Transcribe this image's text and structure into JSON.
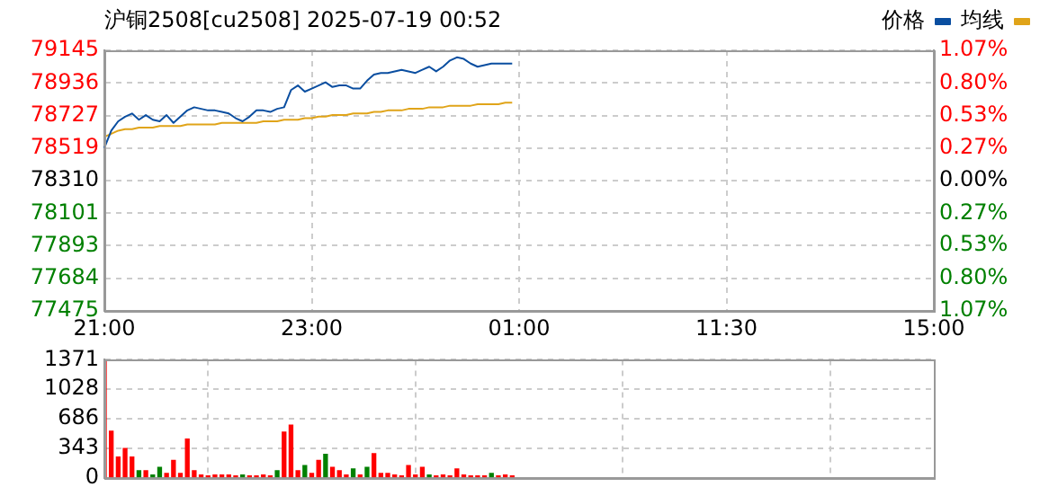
{
  "chart_data": [
    {
      "type": "line",
      "title": "沪铜2508[cu2508] 2025-07-19 00:52",
      "categories": [
        "21:00",
        null,
        null,
        null,
        null,
        null,
        null,
        null,
        null,
        null,
        null,
        null,
        null,
        null,
        null,
        null,
        null,
        null,
        null,
        null,
        null,
        null,
        null,
        null,
        null,
        null,
        null,
        null,
        null,
        null,
        "23:00",
        null,
        null,
        null,
        null,
        null,
        null,
        null,
        null,
        null,
        null,
        null,
        null,
        null,
        null,
        null,
        null,
        null,
        null,
        null,
        null,
        null,
        null,
        null,
        null,
        null,
        null,
        null,
        null,
        null,
        "01:00",
        null,
        null,
        null,
        null,
        null,
        null,
        null,
        null,
        null,
        null,
        null,
        null,
        null,
        null,
        null,
        null,
        null,
        null,
        null,
        null,
        null,
        null,
        null,
        null,
        null,
        null,
        null,
        null,
        null,
        "11:30",
        null,
        null,
        null,
        null,
        null,
        null,
        null,
        null,
        null,
        null,
        null,
        null,
        null,
        null,
        null,
        null,
        null,
        null,
        null,
        null,
        null,
        null,
        null,
        null,
        null,
        null,
        null,
        null,
        null,
        "15:00"
      ],
      "ylim": [
        77475,
        79145
      ],
      "yticks": [
        77475,
        77684,
        77893,
        78101,
        78310,
        78519,
        78727,
        78936,
        79145
      ],
      "y2lim": [
        -1.07,
        1.07
      ],
      "y2ticks": [
        {
          "value": -1.07,
          "label": "1.07%"
        },
        {
          "value": -0.8,
          "label": "0.80%"
        },
        {
          "value": -0.53,
          "label": "0.53%"
        },
        {
          "value": -0.27,
          "label": "0.27%"
        },
        {
          "value": 0,
          "label": "0.00%"
        },
        {
          "value": 0.27,
          "label": "0.27%"
        },
        {
          "value": 0.53,
          "label": "0.53%"
        },
        {
          "value": 0.8,
          "label": "0.80%"
        },
        {
          "value": 1.07,
          "label": "1.07%"
        }
      ],
      "grid": true,
      "legend": "top right",
      "marker": "none",
      "line_style": "solid",
      "series": [
        {
          "name": "价格",
          "color": "#0a4ea0",
          "values": [
            78520,
            78630,
            78690,
            78720,
            78740,
            78700,
            78730,
            78700,
            78690,
            78730,
            78680,
            78720,
            78760,
            78780,
            78770,
            78760,
            78760,
            78750,
            78740,
            78710,
            78690,
            78720,
            78760,
            78760,
            78750,
            78770,
            78780,
            78890,
            78920,
            78880,
            78900,
            78920,
            78940,
            78910,
            78920,
            78920,
            78900,
            78900,
            78950,
            78990,
            79000,
            79000,
            79010,
            79020,
            79010,
            79000,
            79020,
            79040,
            79010,
            79040,
            79080,
            79100,
            79090,
            79060,
            79040,
            79050,
            79060,
            79060,
            79060,
            79060,
            null,
            null,
            null,
            null,
            null,
            null,
            null,
            null,
            null,
            null,
            null,
            null,
            null,
            null,
            null,
            null,
            null,
            null,
            null,
            null,
            null,
            null,
            null,
            null,
            null,
            null,
            null,
            null,
            null,
            null,
            null,
            null,
            null,
            null,
            null,
            null,
            null,
            null,
            null,
            null,
            null,
            null,
            null,
            null,
            null,
            null,
            null,
            null,
            null,
            null,
            null,
            null,
            null,
            null,
            null,
            null,
            null,
            null,
            null,
            null,
            null
          ]
        },
        {
          "name": "均线",
          "color": "#e0a419",
          "values": [
            78590,
            78610,
            78630,
            78640,
            78640,
            78650,
            78650,
            78650,
            78660,
            78660,
            78660,
            78660,
            78670,
            78670,
            78670,
            78670,
            78670,
            78680,
            78680,
            78680,
            78680,
            78680,
            78680,
            78690,
            78690,
            78690,
            78700,
            78700,
            78700,
            78710,
            78710,
            78720,
            78720,
            78730,
            78730,
            78730,
            78740,
            78740,
            78740,
            78750,
            78750,
            78760,
            78760,
            78760,
            78770,
            78770,
            78770,
            78780,
            78780,
            78780,
            78790,
            78790,
            78790,
            78790,
            78800,
            78800,
            78800,
            78800,
            78810,
            78810,
            null,
            null,
            null,
            null,
            null,
            null,
            null,
            null,
            null,
            null,
            null,
            null,
            null,
            null,
            null,
            null,
            null,
            null,
            null,
            null,
            null,
            null,
            null,
            null,
            null,
            null,
            null,
            null,
            null,
            null,
            null,
            null,
            null,
            null,
            null,
            null,
            null,
            null,
            null,
            null,
            null,
            null,
            null,
            null,
            null,
            null,
            null,
            null,
            null,
            null,
            null,
            null,
            null,
            null,
            null,
            null,
            null,
            null,
            null,
            null,
            null
          ]
        }
      ]
    },
    {
      "type": "bar",
      "categories": [
        null,
        null,
        null,
        null,
        null,
        null,
        null,
        null,
        null,
        null,
        null,
        null,
        null,
        null,
        null,
        null,
        null,
        null,
        null,
        null,
        null,
        null,
        null,
        null,
        null,
        null,
        null,
        null,
        null,
        null,
        null,
        null,
        null,
        null,
        null,
        null,
        null,
        null,
        null,
        null,
        null,
        null,
        null,
        null,
        null,
        null,
        null,
        null,
        null,
        null,
        null,
        null,
        null,
        null,
        null,
        null,
        null,
        null,
        null,
        null,
        null,
        null,
        null,
        null,
        null,
        null,
        null,
        null,
        null,
        null,
        null,
        null,
        null,
        null,
        null,
        null,
        null,
        null,
        null,
        null,
        null,
        null,
        null,
        null,
        null,
        null,
        null,
        null,
        null,
        null,
        null,
        null,
        null,
        null,
        null,
        null,
        null,
        null,
        null,
        null,
        null,
        null,
        null,
        null,
        null,
        null,
        null,
        null,
        null,
        null,
        null,
        null,
        null,
        null,
        null,
        null,
        null,
        null,
        null,
        null,
        null
      ],
      "ylim": [
        0,
        1371
      ],
      "yticks": [
        0,
        343,
        686,
        1028,
        1371
      ],
      "grid": true,
      "tick_labels": "y",
      "values": [
        1370,
        540,
        240,
        340,
        240,
        80,
        80,
        30,
        120,
        50,
        200,
        50,
        450,
        80,
        30,
        20,
        30,
        30,
        30,
        20,
        30,
        20,
        20,
        30,
        20,
        80,
        530,
        610,
        80,
        140,
        50,
        200,
        270,
        120,
        80,
        30,
        100,
        30,
        120,
        280,
        50,
        50,
        30,
        20,
        140,
        30,
        120,
        30,
        20,
        30,
        20,
        100,
        30,
        20,
        20,
        20,
        50,
        20,
        30,
        20,
        null,
        null,
        null,
        null,
        null,
        null,
        null,
        null,
        null,
        null,
        null,
        null,
        null,
        null,
        null,
        null,
        null,
        null,
        null,
        null,
        null,
        null,
        null,
        null,
        null,
        null,
        null,
        null,
        null,
        null,
        null,
        null,
        null,
        null,
        null,
        null,
        null,
        null,
        null,
        null,
        null,
        null,
        null,
        null,
        null,
        null,
        null,
        null,
        null,
        null,
        null,
        null,
        null,
        null,
        null,
        null,
        null,
        null,
        null,
        null,
        null
      ],
      "colors": [
        "#ff0000",
        "#ff0000",
        "#ff0000",
        "#ff0000",
        "#ff0000",
        "#008000",
        "#ff0000",
        "#008000",
        "#008000",
        "#ff0000",
        "#ff0000",
        "#ff0000",
        "#ff0000",
        "#ff0000",
        "#ff0000",
        "#ff0000",
        "#ff0000",
        "#ff0000",
        "#ff0000",
        "#ff0000",
        "#008000",
        "#ff0000",
        "#ff0000",
        "#ff0000",
        "#ff0000",
        "#008000",
        "#ff0000",
        "#ff0000",
        "#ff0000",
        "#008000",
        "#ff0000",
        "#ff0000",
        "#008000",
        "#ff0000",
        "#ff0000",
        "#ff0000",
        "#008000",
        "#ff0000",
        "#008000",
        "#ff0000",
        "#ff0000",
        "#ff0000",
        "#ff0000",
        "#ff0000",
        "#ff0000",
        "#ff0000",
        "#ff0000",
        "#008000",
        "#ff0000",
        "#ff0000",
        "#ff0000",
        "#ff0000",
        "#ff0000",
        "#ff0000",
        "#ff0000",
        "#ff0000",
        "#008000",
        "#ff0000",
        "#ff0000",
        "#ff0000",
        null,
        null,
        null,
        null,
        null,
        null,
        null,
        null,
        null,
        null,
        null,
        null,
        null,
        null,
        null,
        null,
        null,
        null,
        null,
        null,
        null,
        null,
        null,
        null,
        null,
        null,
        null,
        null,
        null,
        null,
        null,
        null,
        null,
        null,
        null,
        null,
        null,
        null,
        null,
        null,
        null,
        null,
        null,
        null,
        null,
        null,
        null,
        null,
        null,
        null,
        null,
        null,
        null,
        null,
        null,
        null,
        null,
        null,
        null,
        null,
        null
      ]
    }
  ]
}
